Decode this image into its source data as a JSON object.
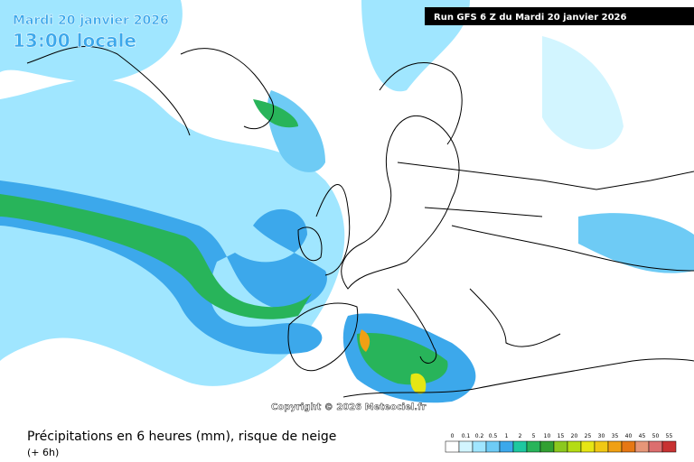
{
  "header": {
    "date": "Mardi 20 janvier 2026",
    "time": "13:00 locale",
    "run": "Run GFS 6 Z du Mardi 20 janvier 2026"
  },
  "copyright": "Copyright © 2026 Meteociel.fr",
  "footer": {
    "title": "Précipitations en 6 heures (mm), risque de neige",
    "step": "(+ 6h)"
  },
  "legend": {
    "levels": [
      {
        "label": "0",
        "color": "#ffffff"
      },
      {
        "label": "0.1",
        "color": "#d2f5ff"
      },
      {
        "label": "0.2",
        "color": "#a0e6ff"
      },
      {
        "label": "0.5",
        "color": "#6ecbf5"
      },
      {
        "label": "1",
        "color": "#3ca8eb"
      },
      {
        "label": "2",
        "color": "#1ec8a0"
      },
      {
        "label": "5",
        "color": "#28b45a"
      },
      {
        "label": "10",
        "color": "#32a032"
      },
      {
        "label": "15",
        "color": "#8cc81e"
      },
      {
        "label": "20",
        "color": "#b4dc14"
      },
      {
        "label": "25",
        "color": "#e6e614"
      },
      {
        "label": "30",
        "color": "#f0c814"
      },
      {
        "label": "35",
        "color": "#f0a014"
      },
      {
        "label": "40",
        "color": "#e67814"
      },
      {
        "label": "45",
        "color": "#e69678"
      },
      {
        "label": "50",
        "color": "#dc6e6e"
      },
      {
        "label": "55",
        "color": "#c83232"
      }
    ]
  }
}
